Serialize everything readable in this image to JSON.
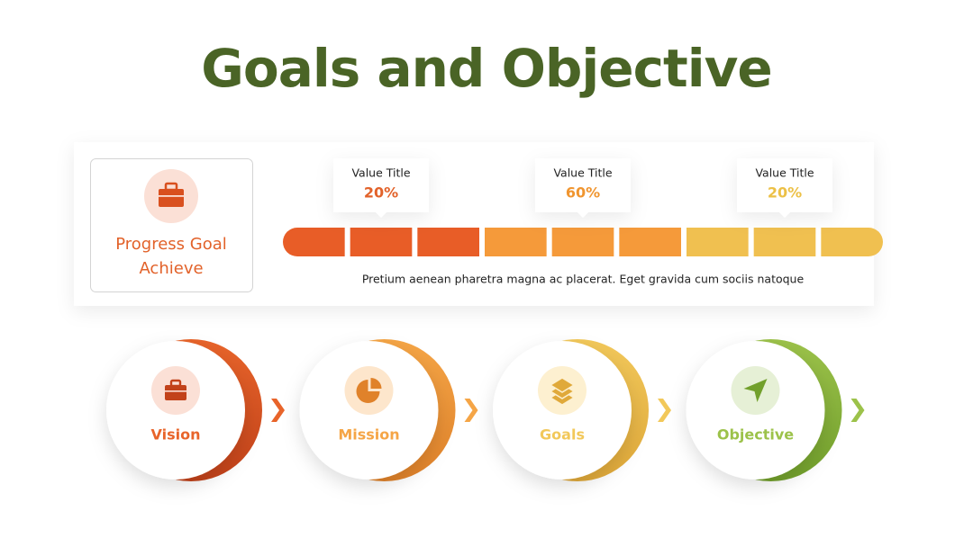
{
  "title": "Goals and Objective",
  "progress_card": {
    "label": "Progress Goal Achieve",
    "markers": [
      {
        "title": "Value Title",
        "value": "20%"
      },
      {
        "title": "Value Title",
        "value": "60%"
      },
      {
        "title": "Value Title",
        "value": "20%"
      }
    ],
    "description": "Pretium aenean pharetra magna ac placerat. Eget gravida cum sociis natoque"
  },
  "steps": [
    {
      "label": "Vision"
    },
    {
      "label": "Mission"
    },
    {
      "label": "Goals"
    },
    {
      "label": "Objective"
    }
  ]
}
